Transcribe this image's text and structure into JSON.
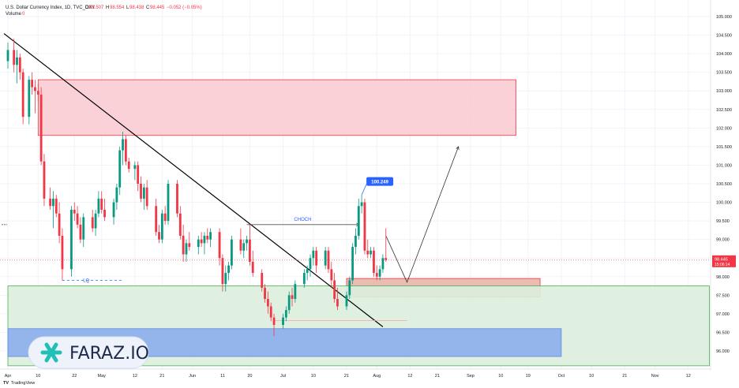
{
  "header": {
    "symbol_line": "U.S. Dollar Currency Index, 1D, TVC_DXY",
    "o_label": "O",
    "o_value": "98.507",
    "h_label": "H",
    "h_value": "98.554",
    "l_label": "L",
    "l_value": "98.438",
    "c_label": "C",
    "c_value": "98.445",
    "change": "−0.052 (−0.05%)",
    "volume_label": "Volume",
    "volume_value": "0"
  },
  "annotations": {
    "choch": "CHOCH",
    "lq": "LQ",
    "high_label": "100.249",
    "current_price": "98.445",
    "countdown": "15:06:14"
  },
  "branding": {
    "logo_text": "FARAZ.IO",
    "tradingview": "TradingView"
  },
  "colors": {
    "bull": "#089981",
    "bear": "#f23645",
    "supply_zone": "#f9c9cf",
    "demand_zone": "#dceedd",
    "blue_zone": "#8fb0ec",
    "trendline": "#000000",
    "accent": "#2962ff"
  },
  "chart_data": {
    "type": "candlestick",
    "y_ticks": [
      "105.000",
      "104.500",
      "104.000",
      "103.500",
      "103.000",
      "102.500",
      "102.000",
      "101.500",
      "101.000",
      "100.500",
      "100.000",
      "99.500",
      "99.000",
      "98.500",
      "98.000",
      "97.500",
      "97.000",
      "96.500",
      "96.000"
    ],
    "ylim": [
      95.8,
      105.2
    ],
    "x_ticks": [
      "Apr",
      "10",
      "22",
      "May",
      "12",
      "21",
      "Jun",
      "11",
      "20",
      "Jul",
      "10",
      "21",
      "Aug",
      "12",
      "21",
      "Sep",
      "10",
      "19",
      "Oct",
      "10",
      "21",
      "Nov",
      "12"
    ],
    "x_tick_days": [
      0,
      10,
      22,
      31,
      42,
      51,
      61,
      71,
      80,
      91,
      101,
      112,
      122,
      133,
      142,
      153,
      163,
      172,
      183,
      193,
      204,
      214,
      225
    ],
    "candles": [
      {
        "d": 0,
        "o": 103.8,
        "h": 104.3,
        "l": 103.6,
        "c": 104.1
      },
      {
        "d": 2,
        "o": 104.1,
        "h": 104.4,
        "l": 103.5,
        "c": 103.7
      },
      {
        "d": 3,
        "o": 103.7,
        "h": 104.1,
        "l": 103.2,
        "c": 103.9
      },
      {
        "d": 4,
        "o": 103.9,
        "h": 104.0,
        "l": 103.3,
        "c": 103.5
      },
      {
        "d": 5,
        "o": 103.5,
        "h": 103.6,
        "l": 102.1,
        "c": 102.3
      },
      {
        "d": 7,
        "o": 102.3,
        "h": 103.4,
        "l": 102.1,
        "c": 103.3
      },
      {
        "d": 8,
        "o": 103.3,
        "h": 103.5,
        "l": 102.9,
        "c": 103.1
      },
      {
        "d": 9,
        "o": 103.1,
        "h": 103.3,
        "l": 102.4,
        "c": 103.0
      },
      {
        "d": 10,
        "o": 103.0,
        "h": 103.2,
        "l": 102.7,
        "c": 102.9
      },
      {
        "d": 11,
        "o": 102.9,
        "h": 103.1,
        "l": 101.0,
        "c": 101.1
      },
      {
        "d": 12,
        "o": 101.1,
        "h": 101.3,
        "l": 99.9,
        "c": 100.1
      },
      {
        "d": 14,
        "o": 100.1,
        "h": 100.4,
        "l": 99.8,
        "c": 99.9
      },
      {
        "d": 15,
        "o": 99.9,
        "h": 100.3,
        "l": 99.3,
        "c": 100.1
      },
      {
        "d": 16,
        "o": 100.1,
        "h": 100.2,
        "l": 99.6,
        "c": 99.7
      },
      {
        "d": 17,
        "o": 99.7,
        "h": 100.0,
        "l": 98.9,
        "c": 99.1
      },
      {
        "d": 18,
        "o": 99.1,
        "h": 99.3,
        "l": 97.9,
        "c": 98.2
      },
      {
        "d": 21,
        "o": 98.2,
        "h": 99.9,
        "l": 98.0,
        "c": 99.8
      },
      {
        "d": 22,
        "o": 99.8,
        "h": 100.0,
        "l": 99.5,
        "c": 99.7
      },
      {
        "d": 23,
        "o": 99.7,
        "h": 99.9,
        "l": 99.3,
        "c": 99.4
      },
      {
        "d": 24,
        "o": 99.4,
        "h": 99.6,
        "l": 98.9,
        "c": 99.0
      },
      {
        "d": 25,
        "o": 99.0,
        "h": 99.7,
        "l": 98.8,
        "c": 99.6
      },
      {
        "d": 28,
        "o": 99.6,
        "h": 99.8,
        "l": 99.2,
        "c": 99.3
      },
      {
        "d": 29,
        "o": 99.3,
        "h": 99.8,
        "l": 99.1,
        "c": 99.7
      },
      {
        "d": 30,
        "o": 99.7,
        "h": 100.3,
        "l": 99.6,
        "c": 100.1
      },
      {
        "d": 31,
        "o": 100.1,
        "h": 100.3,
        "l": 99.7,
        "c": 99.8
      },
      {
        "d": 32,
        "o": 99.8,
        "h": 100.1,
        "l": 99.5,
        "c": 99.6
      },
      {
        "d": 35,
        "o": 99.6,
        "h": 100.1,
        "l": 99.4,
        "c": 100.0
      },
      {
        "d": 36,
        "o": 100.0,
        "h": 100.5,
        "l": 99.8,
        "c": 100.4
      },
      {
        "d": 37,
        "o": 100.4,
        "h": 101.5,
        "l": 100.2,
        "c": 101.4
      },
      {
        "d": 38,
        "o": 101.4,
        "h": 101.9,
        "l": 101.0,
        "c": 101.7
      },
      {
        "d": 39,
        "o": 101.7,
        "h": 101.8,
        "l": 101.0,
        "c": 101.1
      },
      {
        "d": 40,
        "o": 101.1,
        "h": 101.2,
        "l": 100.8,
        "c": 100.9
      },
      {
        "d": 42,
        "o": 100.9,
        "h": 101.1,
        "l": 100.6,
        "c": 101.0
      },
      {
        "d": 43,
        "o": 101.0,
        "h": 101.1,
        "l": 100.3,
        "c": 100.5
      },
      {
        "d": 44,
        "o": 100.5,
        "h": 100.7,
        "l": 100.0,
        "c": 100.1
      },
      {
        "d": 45,
        "o": 100.1,
        "h": 100.5,
        "l": 99.8,
        "c": 100.4
      },
      {
        "d": 46,
        "o": 100.4,
        "h": 100.6,
        "l": 99.8,
        "c": 99.9
      },
      {
        "d": 49,
        "o": 99.9,
        "h": 100.1,
        "l": 99.1,
        "c": 99.2
      },
      {
        "d": 50,
        "o": 99.2,
        "h": 99.4,
        "l": 98.9,
        "c": 99.0
      },
      {
        "d": 51,
        "o": 99.0,
        "h": 99.8,
        "l": 98.9,
        "c": 99.7
      },
      {
        "d": 52,
        "o": 99.7,
        "h": 99.9,
        "l": 99.4,
        "c": 99.5
      },
      {
        "d": 53,
        "o": 99.5,
        "h": 100.6,
        "l": 99.4,
        "c": 100.5
      },
      {
        "d": 56,
        "o": 100.5,
        "h": 100.6,
        "l": 99.6,
        "c": 99.7
      },
      {
        "d": 57,
        "o": 99.7,
        "h": 99.9,
        "l": 99.0,
        "c": 99.1
      },
      {
        "d": 58,
        "o": 99.1,
        "h": 99.4,
        "l": 98.4,
        "c": 98.6
      },
      {
        "d": 59,
        "o": 98.6,
        "h": 99.0,
        "l": 98.4,
        "c": 98.9
      },
      {
        "d": 60,
        "o": 98.9,
        "h": 99.2,
        "l": 98.7,
        "c": 98.8
      },
      {
        "d": 63,
        "o": 98.8,
        "h": 99.1,
        "l": 98.6,
        "c": 99.0
      },
      {
        "d": 64,
        "o": 99.0,
        "h": 99.2,
        "l": 98.8,
        "c": 98.9
      },
      {
        "d": 65,
        "o": 98.9,
        "h": 99.2,
        "l": 98.6,
        "c": 99.1
      },
      {
        "d": 66,
        "o": 99.1,
        "h": 99.3,
        "l": 98.9,
        "c": 99.0
      },
      {
        "d": 67,
        "o": 99.0,
        "h": 99.3,
        "l": 98.8,
        "c": 99.2
      },
      {
        "d": 70,
        "o": 99.2,
        "h": 99.3,
        "l": 98.3,
        "c": 98.5
      },
      {
        "d": 71,
        "o": 98.5,
        "h": 98.6,
        "l": 97.6,
        "c": 97.8
      },
      {
        "d": 72,
        "o": 97.8,
        "h": 98.3,
        "l": 97.6,
        "c": 98.1
      },
      {
        "d": 73,
        "o": 98.1,
        "h": 98.4,
        "l": 97.9,
        "c": 98.3
      },
      {
        "d": 74,
        "o": 98.3,
        "h": 99.1,
        "l": 98.2,
        "c": 99.0
      },
      {
        "d": 77,
        "o": 99.0,
        "h": 99.3,
        "l": 98.6,
        "c": 98.7
      },
      {
        "d": 78,
        "o": 98.7,
        "h": 99.0,
        "l": 98.5,
        "c": 98.9
      },
      {
        "d": 79,
        "o": 98.9,
        "h": 99.1,
        "l": 98.7,
        "c": 99.0
      },
      {
        "d": 80,
        "o": 99.0,
        "h": 99.4,
        "l": 98.3,
        "c": 98.4
      },
      {
        "d": 81,
        "o": 98.4,
        "h": 98.7,
        "l": 98.0,
        "c": 98.1
      },
      {
        "d": 84,
        "o": 98.1,
        "h": 98.2,
        "l": 97.6,
        "c": 97.7
      },
      {
        "d": 85,
        "o": 97.7,
        "h": 97.8,
        "l": 97.3,
        "c": 97.4
      },
      {
        "d": 86,
        "o": 97.4,
        "h": 97.6,
        "l": 97.0,
        "c": 97.2
      },
      {
        "d": 87,
        "o": 97.2,
        "h": 97.3,
        "l": 96.8,
        "c": 96.9
      },
      {
        "d": 88,
        "o": 96.9,
        "h": 97.0,
        "l": 96.4,
        "c": 96.7
      },
      {
        "d": 91,
        "o": 96.7,
        "h": 97.0,
        "l": 96.6,
        "c": 96.9
      },
      {
        "d": 92,
        "o": 96.9,
        "h": 97.2,
        "l": 96.8,
        "c": 97.1
      },
      {
        "d": 93,
        "o": 97.1,
        "h": 97.6,
        "l": 97.0,
        "c": 97.5
      },
      {
        "d": 94,
        "o": 97.5,
        "h": 97.7,
        "l": 97.2,
        "c": 97.4
      },
      {
        "d": 95,
        "o": 97.4,
        "h": 97.9,
        "l": 97.3,
        "c": 97.8
      },
      {
        "d": 98,
        "o": 97.8,
        "h": 98.2,
        "l": 97.7,
        "c": 98.1
      },
      {
        "d": 99,
        "o": 98.1,
        "h": 98.3,
        "l": 97.9,
        "c": 98.2
      },
      {
        "d": 100,
        "o": 98.2,
        "h": 98.6,
        "l": 98.0,
        "c": 98.5
      },
      {
        "d": 101,
        "o": 98.5,
        "h": 98.8,
        "l": 98.3,
        "c": 98.7
      },
      {
        "d": 102,
        "o": 98.7,
        "h": 98.8,
        "l": 98.1,
        "c": 98.3
      },
      {
        "d": 105,
        "o": 98.3,
        "h": 98.8,
        "l": 98.2,
        "c": 98.7
      },
      {
        "d": 106,
        "o": 98.7,
        "h": 98.8,
        "l": 98.1,
        "c": 98.2
      },
      {
        "d": 107,
        "o": 98.2,
        "h": 98.4,
        "l": 97.7,
        "c": 97.9
      },
      {
        "d": 108,
        "o": 97.9,
        "h": 98.1,
        "l": 97.3,
        "c": 97.4
      },
      {
        "d": 109,
        "o": 97.4,
        "h": 97.7,
        "l": 97.1,
        "c": 97.2
      },
      {
        "d": 112,
        "o": 97.2,
        "h": 97.6,
        "l": 97.1,
        "c": 97.5
      },
      {
        "d": 113,
        "o": 97.5,
        "h": 98.0,
        "l": 97.4,
        "c": 97.9
      },
      {
        "d": 114,
        "o": 97.9,
        "h": 98.9,
        "l": 97.8,
        "c": 98.8
      },
      {
        "d": 115,
        "o": 98.8,
        "h": 99.3,
        "l": 98.6,
        "c": 99.1
      },
      {
        "d": 116,
        "o": 99.1,
        "h": 100.1,
        "l": 99.0,
        "c": 99.9
      },
      {
        "d": 117,
        "o": 99.9,
        "h": 100.2,
        "l": 99.7,
        "c": 100.0
      },
      {
        "d": 118,
        "o": 100.0,
        "h": 100.1,
        "l": 98.6,
        "c": 98.7
      },
      {
        "d": 119,
        "o": 98.7,
        "h": 99.0,
        "l": 98.5,
        "c": 98.6
      },
      {
        "d": 120,
        "o": 98.6,
        "h": 98.8,
        "l": 98.5,
        "c": 98.7
      },
      {
        "d": 121,
        "o": 98.7,
        "h": 98.8,
        "l": 98.0,
        "c": 98.1
      },
      {
        "d": 122,
        "o": 98.1,
        "h": 98.3,
        "l": 97.9,
        "c": 98.0
      },
      {
        "d": 123,
        "o": 98.0,
        "h": 98.3,
        "l": 97.9,
        "c": 98.2
      },
      {
        "d": 124,
        "o": 98.2,
        "h": 98.6,
        "l": 98.1,
        "c": 98.5
      },
      {
        "d": 125,
        "o": 98.5,
        "h": 99.3,
        "l": 98.4,
        "c": 98.45
      }
    ],
    "zones": [
      {
        "name": "supply",
        "from_day": 10,
        "to_day": 168,
        "low": 101.8,
        "high": 103.3
      },
      {
        "name": "demand",
        "from_day": 112,
        "to_day": 176,
        "low": 97.45,
        "high": 97.95
      },
      {
        "name": "support",
        "from_day": 0,
        "to_day": 232,
        "low": 95.6,
        "high": 97.75
      },
      {
        "name": "blue",
        "from_day": 0,
        "to_day": 183,
        "low": 95.85,
        "high": 96.6
      }
    ],
    "trendline": {
      "from_day": 0,
      "from_price": 104.5,
      "to_day": 124,
      "to_price": 96.65
    },
    "choch_level": {
      "from_day": 79,
      "to_day": 116,
      "price": 99.4
    },
    "lq_level": {
      "from_day": 18,
      "to_day": 38,
      "price": 97.9
    },
    "projection": [
      {
        "day": 125,
        "price": 99.1
      },
      {
        "day": 132,
        "price": 97.85
      },
      {
        "day": 149,
        "price": 101.5
      }
    ]
  }
}
